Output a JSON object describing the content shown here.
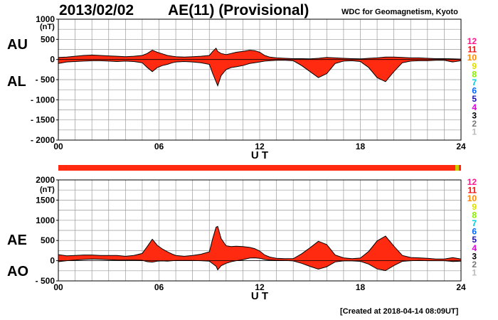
{
  "header": {
    "date": "2013/02/02",
    "title": "AE(11) (Provisional)",
    "organization": "WDC for Geomagnetism, Kyoto"
  },
  "footer": {
    "created": "[Created at 2018-04-14 08:09UT]"
  },
  "colors": {
    "fill": "#ff2a10",
    "outline": "#000000",
    "grid": "#999999",
    "bar": "#ff2a10",
    "bar_tail": "#cccc00"
  },
  "station_legend": [
    {
      "label": "12",
      "color": "#ff1a8c"
    },
    {
      "label": "11",
      "color": "#ee1111"
    },
    {
      "label": "10",
      "color": "#ff8800"
    },
    {
      "label": "9",
      "color": "#dddd00"
    },
    {
      "label": "8",
      "color": "#88ee00"
    },
    {
      "label": "7",
      "color": "#00ccdd"
    },
    {
      "label": "6",
      "color": "#0066ff"
    },
    {
      "label": "5",
      "color": "#1a10aa"
    },
    {
      "label": "4",
      "color": "#dd00dd"
    },
    {
      "label": "3",
      "color": "#000000"
    },
    {
      "label": "2",
      "color": "#777777"
    },
    {
      "label": "1",
      "color": "#bbbbbb"
    }
  ],
  "chart_data": [
    {
      "type": "area",
      "name_labels": [
        "AU",
        "AL"
      ],
      "unit": "(nT)",
      "xlabel": "U T",
      "xlim": [
        0,
        24
      ],
      "x_ticks": [
        "00",
        "06",
        "12",
        "18",
        "24"
      ],
      "ylim": [
        -2000,
        1000
      ],
      "y_ticks": [
        "1000",
        "500",
        "0",
        "- 500",
        "- 1000",
        "- 1500",
        "- 2000"
      ],
      "y_tick_values": [
        1000,
        500,
        0,
        -500,
        -1000,
        -1500,
        -2000
      ],
      "grid": true,
      "series": [
        {
          "name": "AU",
          "x": [
            0,
            0.5,
            1,
            1.5,
            2,
            2.5,
            3,
            3.5,
            4,
            4.5,
            5,
            5.3,
            5.6,
            5.9,
            6.2,
            6.5,
            6.8,
            7,
            7.5,
            8,
            8.5,
            9,
            9.2,
            9.4,
            9.5,
            9.7,
            10,
            10.3,
            10.6,
            11,
            11.4,
            11.7,
            12,
            12.3,
            12.6,
            13,
            13.5,
            14,
            14.5,
            15,
            15.5,
            16,
            16.5,
            17,
            17.5,
            18,
            18.5,
            19,
            19.5,
            20,
            20.5,
            21,
            21.5,
            22,
            22.5,
            23,
            23.5,
            24
          ],
          "y": [
            50,
            60,
            80,
            100,
            110,
            100,
            90,
            80,
            70,
            80,
            100,
            150,
            230,
            180,
            140,
            100,
            80,
            70,
            60,
            70,
            80,
            100,
            200,
            280,
            200,
            150,
            120,
            150,
            180,
            200,
            230,
            220,
            180,
            100,
            60,
            40,
            30,
            20,
            20,
            15,
            30,
            50,
            40,
            30,
            20,
            15,
            30,
            40,
            60,
            60,
            50,
            40,
            40,
            30,
            20,
            20,
            15,
            10
          ]
        },
        {
          "name": "AL",
          "x": [
            0,
            0.5,
            1,
            1.5,
            2,
            2.5,
            3,
            3.5,
            4,
            4.5,
            5,
            5.3,
            5.6,
            5.9,
            6.2,
            6.5,
            6.8,
            7,
            7.5,
            8,
            8.5,
            9,
            9.2,
            9.4,
            9.5,
            9.7,
            10,
            10.3,
            10.6,
            11,
            11.4,
            11.7,
            12,
            12.3,
            12.6,
            13,
            13.5,
            14,
            14.5,
            15,
            15.5,
            16,
            16.5,
            17,
            17.5,
            18,
            18.5,
            19,
            19.5,
            20,
            20.5,
            21,
            21.5,
            22,
            22.5,
            23,
            23.5,
            24
          ],
          "y": [
            -100,
            -60,
            -50,
            -40,
            -30,
            -30,
            -40,
            -50,
            -40,
            -50,
            -80,
            -200,
            -300,
            -200,
            -150,
            -120,
            -80,
            -60,
            -50,
            -60,
            -80,
            -120,
            -350,
            -550,
            -650,
            -400,
            -250,
            -200,
            -180,
            -150,
            -100,
            -80,
            -60,
            -40,
            -30,
            -20,
            -20,
            -30,
            -150,
            -300,
            -450,
            -350,
            -100,
            -40,
            -30,
            -50,
            -200,
            -450,
            -550,
            -300,
            -80,
            -40,
            -30,
            -30,
            -20,
            -20,
            -60,
            -30
          ]
        }
      ]
    },
    {
      "type": "area",
      "name_labels": [
        "AE",
        "AO"
      ],
      "unit": "(nT)",
      "xlabel": "U T",
      "xlim": [
        0,
        24
      ],
      "x_ticks": [
        "00",
        "06",
        "12",
        "18",
        "24"
      ],
      "ylim": [
        -500,
        2000
      ],
      "y_ticks": [
        "2000",
        "1500",
        "1000",
        "500",
        "0",
        "- 500"
      ],
      "y_tick_values": [
        2000,
        1500,
        1000,
        500,
        0,
        -500
      ],
      "grid": true,
      "series": [
        {
          "name": "AE",
          "x": [
            0,
            0.5,
            1,
            1.5,
            2,
            2.5,
            3,
            3.5,
            4,
            4.5,
            5,
            5.3,
            5.6,
            5.9,
            6.2,
            6.5,
            6.8,
            7,
            7.5,
            8,
            8.5,
            9,
            9.2,
            9.4,
            9.5,
            9.7,
            10,
            10.3,
            10.6,
            11,
            11.4,
            11.7,
            12,
            12.3,
            12.6,
            13,
            13.5,
            14,
            14.5,
            15,
            15.5,
            16,
            16.5,
            17,
            17.5,
            18,
            18.5,
            19,
            19.5,
            20,
            20.5,
            21,
            21.5,
            22,
            22.5,
            23,
            23.5,
            24
          ],
          "y": [
            150,
            120,
            130,
            140,
            140,
            130,
            130,
            130,
            110,
            130,
            180,
            350,
            530,
            380,
            290,
            220,
            160,
            130,
            110,
            130,
            160,
            220,
            550,
            830,
            850,
            550,
            370,
            350,
            360,
            350,
            330,
            300,
            240,
            140,
            90,
            60,
            50,
            50,
            170,
            320,
            480,
            400,
            140,
            70,
            50,
            65,
            230,
            490,
            610,
            360,
            130,
            80,
            70,
            60,
            40,
            40,
            75,
            40
          ]
        },
        {
          "name": "AO",
          "x": [
            0,
            0.5,
            1,
            1.5,
            2,
            2.5,
            3,
            3.5,
            4,
            4.5,
            5,
            5.3,
            5.6,
            5.9,
            6.2,
            6.5,
            6.8,
            7,
            7.5,
            8,
            8.5,
            9,
            9.2,
            9.4,
            9.5,
            9.7,
            10,
            10.3,
            10.6,
            11,
            11.4,
            11.7,
            12,
            12.3,
            12.6,
            13,
            13.5,
            14,
            14.5,
            15,
            15.5,
            16,
            16.5,
            17,
            17.5,
            18,
            18.5,
            19,
            19.5,
            20,
            20.5,
            21,
            21.5,
            22,
            22.5,
            23,
            23.5,
            24
          ],
          "y": [
            -25,
            0,
            15,
            30,
            40,
            35,
            25,
            15,
            15,
            15,
            10,
            -25,
            -35,
            -10,
            -5,
            -10,
            0,
            5,
            5,
            5,
            0,
            -10,
            -75,
            -135,
            -225,
            -125,
            -65,
            -25,
            0,
            25,
            65,
            70,
            60,
            30,
            15,
            10,
            5,
            -5,
            -65,
            -140,
            -210,
            -150,
            -30,
            -5,
            -5,
            -15,
            -85,
            -205,
            -245,
            -120,
            -15,
            0,
            5,
            0,
            0,
            0,
            -20,
            -10
          ]
        }
      ]
    }
  ]
}
